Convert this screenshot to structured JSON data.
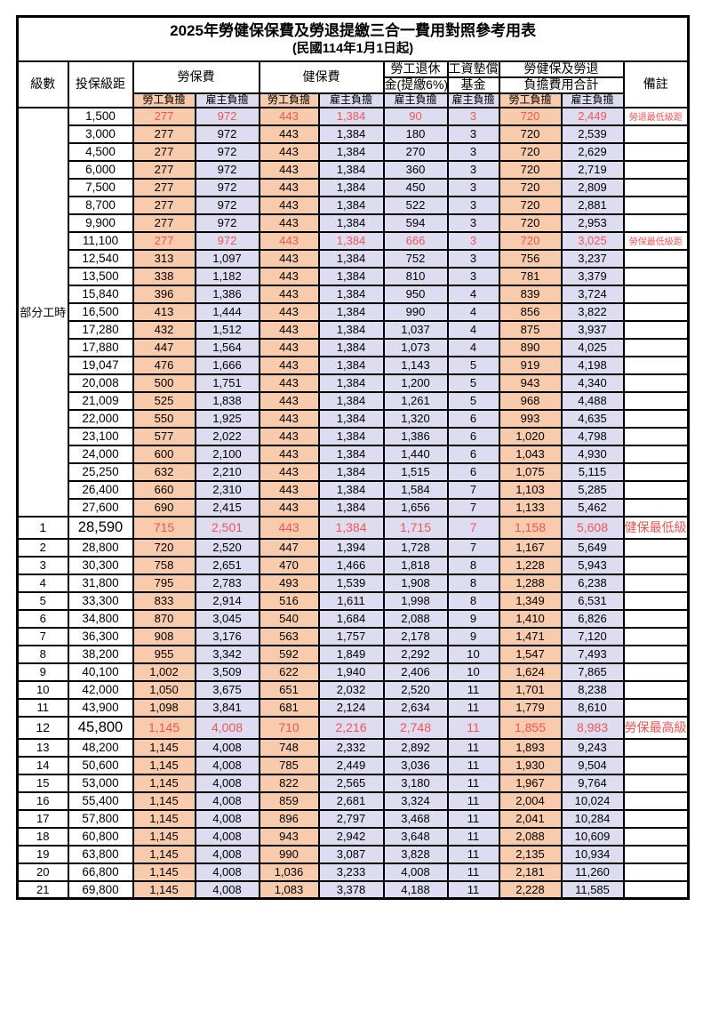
{
  "title": "2025年勞健保保費及勞退提繳三合一費用對照參考用表",
  "subtitle": "(民國114年1月1日起)",
  "colors": {
    "employee_bg": "#f8cbad",
    "employer_bg": "#dedcf0",
    "highlight_text": "#f05555",
    "border": "#000000"
  },
  "headers": {
    "level": "級數",
    "bracket": "投保級距",
    "labor_fee": "勞保費",
    "health_fee": "健保費",
    "pension_line1": "勞工退休",
    "pension_line2": "金(提繳6%)",
    "wage_fund_line1": "工資墊償",
    "wage_fund_line2": "基金",
    "total_line1": "勞健保及勞退",
    "total_line2": "負擔費用合計",
    "remark": "備註",
    "employee": "勞工負擔",
    "employer": "雇主負擔"
  },
  "table": {
    "part_time": {
      "label": "部分工時",
      "span": 23
    },
    "col_classes": [
      "c-emp",
      "c-er",
      "c-emp",
      "c-er",
      "c-er",
      "c-er",
      "c-emp",
      "c-er"
    ],
    "rows": [
      {
        "bracket": "1,500",
        "v": [
          "277",
          "972",
          "443",
          "1,384",
          "90",
          "3",
          "720",
          "2,449"
        ],
        "remark": "勞退最低級距",
        "red": true
      },
      {
        "bracket": "3,000",
        "v": [
          "277",
          "972",
          "443",
          "1,384",
          "180",
          "3",
          "720",
          "2,539"
        ]
      },
      {
        "bracket": "4,500",
        "v": [
          "277",
          "972",
          "443",
          "1,384",
          "270",
          "3",
          "720",
          "2,629"
        ]
      },
      {
        "bracket": "6,000",
        "v": [
          "277",
          "972",
          "443",
          "1,384",
          "360",
          "3",
          "720",
          "2,719"
        ]
      },
      {
        "bracket": "7,500",
        "v": [
          "277",
          "972",
          "443",
          "1,384",
          "450",
          "3",
          "720",
          "2,809"
        ]
      },
      {
        "bracket": "8,700",
        "v": [
          "277",
          "972",
          "443",
          "1,384",
          "522",
          "3",
          "720",
          "2,881"
        ]
      },
      {
        "bracket": "9,900",
        "v": [
          "277",
          "972",
          "443",
          "1,384",
          "594",
          "3",
          "720",
          "2,953"
        ]
      },
      {
        "bracket": "11,100",
        "v": [
          "277",
          "972",
          "443",
          "1,384",
          "666",
          "3",
          "720",
          "3,025"
        ],
        "remark": "勞保最低級距",
        "red": true
      },
      {
        "bracket": "12,540",
        "v": [
          "313",
          "1,097",
          "443",
          "1,384",
          "752",
          "3",
          "756",
          "3,237"
        ]
      },
      {
        "bracket": "13,500",
        "v": [
          "338",
          "1,182",
          "443",
          "1,384",
          "810",
          "3",
          "781",
          "3,379"
        ]
      },
      {
        "bracket": "15,840",
        "v": [
          "396",
          "1,386",
          "443",
          "1,384",
          "950",
          "4",
          "839",
          "3,724"
        ]
      },
      {
        "bracket": "16,500",
        "v": [
          "413",
          "1,444",
          "443",
          "1,384",
          "990",
          "4",
          "856",
          "3,822"
        ]
      },
      {
        "bracket": "17,280",
        "v": [
          "432",
          "1,512",
          "443",
          "1,384",
          "1,037",
          "4",
          "875",
          "3,937"
        ]
      },
      {
        "bracket": "17,880",
        "v": [
          "447",
          "1,564",
          "443",
          "1,384",
          "1,073",
          "4",
          "890",
          "4,025"
        ]
      },
      {
        "bracket": "19,047",
        "v": [
          "476",
          "1,666",
          "443",
          "1,384",
          "1,143",
          "5",
          "919",
          "4,198"
        ]
      },
      {
        "bracket": "20,008",
        "v": [
          "500",
          "1,751",
          "443",
          "1,384",
          "1,200",
          "5",
          "943",
          "4,340"
        ]
      },
      {
        "bracket": "21,009",
        "v": [
          "525",
          "1,838",
          "443",
          "1,384",
          "1,261",
          "5",
          "968",
          "4,488"
        ]
      },
      {
        "bracket": "22,000",
        "v": [
          "550",
          "1,925",
          "443",
          "1,384",
          "1,320",
          "6",
          "993",
          "4,635"
        ]
      },
      {
        "bracket": "23,100",
        "v": [
          "577",
          "2,022",
          "443",
          "1,384",
          "1,386",
          "6",
          "1,020",
          "4,798"
        ]
      },
      {
        "bracket": "24,000",
        "v": [
          "600",
          "2,100",
          "443",
          "1,384",
          "1,440",
          "6",
          "1,043",
          "4,930"
        ]
      },
      {
        "bracket": "25,250",
        "v": [
          "632",
          "2,210",
          "443",
          "1,384",
          "1,515",
          "6",
          "1,075",
          "5,115"
        ]
      },
      {
        "bracket": "26,400",
        "v": [
          "660",
          "2,310",
          "443",
          "1,384",
          "1,584",
          "7",
          "1,103",
          "5,285"
        ]
      },
      {
        "bracket": "27,600",
        "v": [
          "690",
          "2,415",
          "443",
          "1,384",
          "1,656",
          "7",
          "1,133",
          "5,462"
        ]
      },
      {
        "level": "1",
        "bracket": "28,590",
        "v": [
          "715",
          "2,501",
          "443",
          "1,384",
          "1,715",
          "7",
          "1,158",
          "5,608"
        ],
        "remark": "健保最低級距",
        "red": true,
        "em": true
      },
      {
        "level": "2",
        "bracket": "28,800",
        "v": [
          "720",
          "2,520",
          "447",
          "1,394",
          "1,728",
          "7",
          "1,167",
          "5,649"
        ]
      },
      {
        "level": "3",
        "bracket": "30,300",
        "v": [
          "758",
          "2,651",
          "470",
          "1,466",
          "1,818",
          "8",
          "1,228",
          "5,943"
        ]
      },
      {
        "level": "4",
        "bracket": "31,800",
        "v": [
          "795",
          "2,783",
          "493",
          "1,539",
          "1,908",
          "8",
          "1,288",
          "6,238"
        ]
      },
      {
        "level": "5",
        "bracket": "33,300",
        "v": [
          "833",
          "2,914",
          "516",
          "1,611",
          "1,998",
          "8",
          "1,349",
          "6,531"
        ]
      },
      {
        "level": "6",
        "bracket": "34,800",
        "v": [
          "870",
          "3,045",
          "540",
          "1,684",
          "2,088",
          "9",
          "1,410",
          "6,826"
        ]
      },
      {
        "level": "7",
        "bracket": "36,300",
        "v": [
          "908",
          "3,176",
          "563",
          "1,757",
          "2,178",
          "9",
          "1,471",
          "7,120"
        ]
      },
      {
        "level": "8",
        "bracket": "38,200",
        "v": [
          "955",
          "3,342",
          "592",
          "1,849",
          "2,292",
          "10",
          "1,547",
          "7,493"
        ]
      },
      {
        "level": "9",
        "bracket": "40,100",
        "v": [
          "1,002",
          "3,509",
          "622",
          "1,940",
          "2,406",
          "10",
          "1,624",
          "7,865"
        ]
      },
      {
        "level": "10",
        "bracket": "42,000",
        "v": [
          "1,050",
          "3,675",
          "651",
          "2,032",
          "2,520",
          "11",
          "1,701",
          "8,238"
        ]
      },
      {
        "level": "11",
        "bracket": "43,900",
        "v": [
          "1,098",
          "3,841",
          "681",
          "2,124",
          "2,634",
          "11",
          "1,779",
          "8,610"
        ]
      },
      {
        "level": "12",
        "bracket": "45,800",
        "v": [
          "1,145",
          "4,008",
          "710",
          "2,216",
          "2,748",
          "11",
          "1,855",
          "8,983"
        ],
        "remark": "勞保最高級距",
        "red": true,
        "em": true
      },
      {
        "level": "13",
        "bracket": "48,200",
        "v": [
          "1,145",
          "4,008",
          "748",
          "2,332",
          "2,892",
          "11",
          "1,893",
          "9,243"
        ]
      },
      {
        "level": "14",
        "bracket": "50,600",
        "v": [
          "1,145",
          "4,008",
          "785",
          "2,449",
          "3,036",
          "11",
          "1,930",
          "9,504"
        ]
      },
      {
        "level": "15",
        "bracket": "53,000",
        "v": [
          "1,145",
          "4,008",
          "822",
          "2,565",
          "3,180",
          "11",
          "1,967",
          "9,764"
        ]
      },
      {
        "level": "16",
        "bracket": "55,400",
        "v": [
          "1,145",
          "4,008",
          "859",
          "2,681",
          "3,324",
          "11",
          "2,004",
          "10,024"
        ]
      },
      {
        "level": "17",
        "bracket": "57,800",
        "v": [
          "1,145",
          "4,008",
          "896",
          "2,797",
          "3,468",
          "11",
          "2,041",
          "10,284"
        ]
      },
      {
        "level": "18",
        "bracket": "60,800",
        "v": [
          "1,145",
          "4,008",
          "943",
          "2,942",
          "3,648",
          "11",
          "2,088",
          "10,609"
        ]
      },
      {
        "level": "19",
        "bracket": "63,800",
        "v": [
          "1,145",
          "4,008",
          "990",
          "3,087",
          "3,828",
          "11",
          "2,135",
          "10,934"
        ]
      },
      {
        "level": "20",
        "bracket": "66,800",
        "v": [
          "1,145",
          "4,008",
          "1,036",
          "3,233",
          "4,008",
          "11",
          "2,181",
          "11,260"
        ]
      },
      {
        "level": "21",
        "bracket": "69,800",
        "v": [
          "1,145",
          "4,008",
          "1,083",
          "3,378",
          "4,188",
          "11",
          "2,228",
          "11,585"
        ]
      }
    ]
  }
}
